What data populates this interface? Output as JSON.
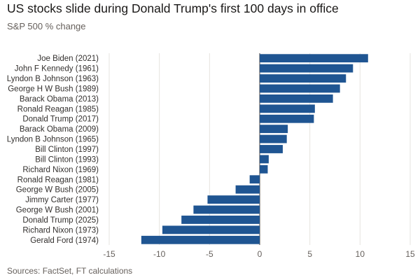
{
  "header": {
    "title": "US stocks slide during Donald Trump's first 100 days in office",
    "subtitle": "S&P 500 % change"
  },
  "footer": {
    "source": "Sources: FactSet, FT calculations"
  },
  "colors": {
    "bar": "#1f5592",
    "grid": "#e6e3df",
    "zero_line": "#66605c"
  },
  "chart_data": {
    "type": "bar",
    "orientation": "horizontal",
    "categories": [
      "Joe Biden (2021)",
      "John F Kennedy (1961)",
      "Lyndon B Johnson (1963)",
      "George H W Bush (1989)",
      "Barack Obama (2013)",
      "Ronald Reagan (1985)",
      "Donald Trump (2017)",
      "Barack Obama (2009)",
      "Lyndon B Johnson (1965)",
      "Bill Clinton (1997)",
      "Bill Clinton (1993)",
      "Richard Nixon (1969)",
      "Ronald Reagan (1981)",
      "George W Bush (2005)",
      "Jimmy Carter (1977)",
      "George W Bush (2001)",
      "Donald Trump (2025)",
      "Richard Nixon (1973)",
      "Gerald Ford (1974)"
    ],
    "values": [
      10.8,
      9.3,
      8.6,
      8.0,
      7.3,
      5.5,
      5.4,
      2.8,
      2.7,
      2.3,
      0.9,
      0.8,
      -1.0,
      -2.4,
      -5.2,
      -6.6,
      -7.8,
      -9.7,
      -11.8
    ],
    "title": "US stocks slide during Donald Trump's first 100 days in office",
    "subtitle": "S&P 500 % change",
    "xlabel": "",
    "ylabel": "",
    "xlim": [
      -15,
      15
    ],
    "xticks": [
      -15,
      -10,
      -5,
      0,
      5,
      10,
      15
    ],
    "xtick_labels": [
      "-15",
      "-10",
      "-5",
      "0",
      "5",
      "10",
      "15"
    ],
    "grid": true,
    "legend": "none"
  }
}
